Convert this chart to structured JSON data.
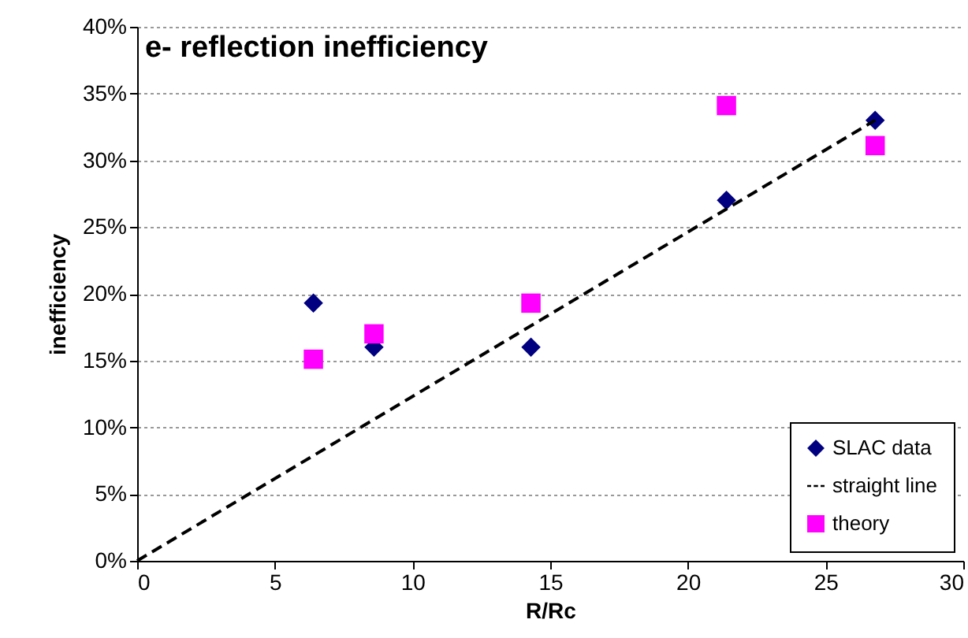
{
  "chart_data": {
    "type": "scatter",
    "title": "e- reflection inefficiency",
    "xlabel": "R/Rc",
    "ylabel": "inefficiency",
    "series": [
      {
        "name": "SLAC data",
        "marker": "diamond",
        "color": "#000080",
        "x": [
          6.4,
          8.6,
          14.3,
          21.4,
          26.8
        ],
        "values": [
          19.3,
          16,
          16,
          27,
          33
        ]
      },
      {
        "name": "straight line",
        "type": "line",
        "line_style": "dashed",
        "color": "#000000",
        "x": [
          0,
          26.8
        ],
        "values": [
          0,
          33
        ]
      },
      {
        "name": "theory",
        "marker": "square",
        "color": "#ff00ff",
        "x": [
          6.4,
          8.6,
          14.3,
          21.4,
          26.8
        ],
        "values": [
          15.1,
          17,
          19.3,
          34.1,
          31.1
        ]
      }
    ],
    "xlim": [
      0,
      30
    ],
    "xticks": [
      0,
      5,
      10,
      15,
      20,
      25,
      30
    ],
    "ylim": [
      0,
      40
    ],
    "yticks": [
      {
        "value": 0,
        "label": "0%"
      },
      {
        "value": 5,
        "label": "5%"
      },
      {
        "value": 10,
        "label": "10%"
      },
      {
        "value": 15,
        "label": "15%"
      },
      {
        "value": 20,
        "label": "20%"
      },
      {
        "value": 25,
        "label": "25%"
      },
      {
        "value": 30,
        "label": "30%"
      },
      {
        "value": 35,
        "label": "35%"
      },
      {
        "value": 40,
        "label": "40%"
      }
    ],
    "grid": "y",
    "legend": "bottom right"
  }
}
